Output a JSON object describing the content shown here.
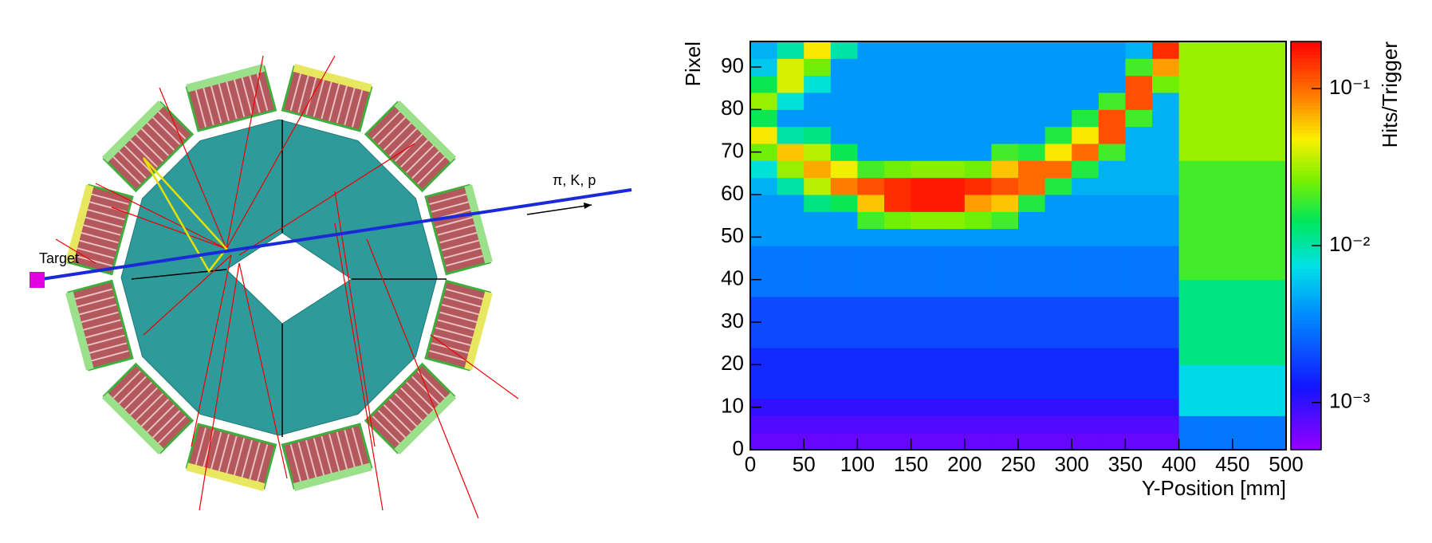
{
  "detector_view": {
    "target_label": "Target",
    "beam_label": "π, K, p"
  },
  "chart_data": {
    "type": "heatmap",
    "xlabel": "Y-Position [mm]",
    "ylabel": "Pixel",
    "zlabel": "Hits/Trigger",
    "xlim": [
      0,
      500
    ],
    "ylim": [
      0,
      96
    ],
    "zlim": [
      0.0005,
      0.2
    ],
    "zscale": "log",
    "xticks": [
      0,
      50,
      100,
      150,
      200,
      250,
      300,
      350,
      400,
      450,
      500
    ],
    "yticks": [
      0,
      10,
      20,
      30,
      40,
      50,
      60,
      70,
      80,
      90
    ],
    "zticks": [
      {
        "value": 0.001,
        "label": "10⁻³"
      },
      {
        "value": 0.01,
        "label": "10⁻²"
      },
      {
        "value": 0.1,
        "label": "10⁻¹"
      }
    ],
    "xbins": [
      0,
      25,
      50,
      75,
      100,
      125,
      150,
      175,
      200,
      225,
      250,
      275,
      300,
      325,
      350,
      375,
      400,
      425,
      450,
      475,
      500
    ],
    "ybins": [
      0,
      4,
      8,
      12,
      16,
      20,
      24,
      28,
      32,
      36,
      40,
      44,
      48,
      52,
      56,
      60,
      64,
      68,
      72,
      76,
      80,
      84,
      88,
      92,
      96
    ],
    "z": [
      [
        0.0007,
        0.0007,
        0.0007,
        0.0007,
        0.0007,
        0.0007,
        0.0007,
        0.0007,
        0.0007,
        0.0007,
        0.0007,
        0.0007,
        0.0007,
        0.0007,
        0.0007,
        0.0007,
        0.003,
        0.003,
        0.003,
        0.003
      ],
      [
        0.0008,
        0.0008,
        0.0008,
        0.0008,
        0.0008,
        0.0008,
        0.0008,
        0.0008,
        0.0008,
        0.0008,
        0.0008,
        0.0008,
        0.0008,
        0.0008,
        0.0008,
        0.0008,
        0.003,
        0.003,
        0.003,
        0.003
      ],
      [
        0.001,
        0.001,
        0.001,
        0.001,
        0.001,
        0.001,
        0.001,
        0.001,
        0.001,
        0.001,
        0.001,
        0.001,
        0.001,
        0.001,
        0.001,
        0.001,
        0.007,
        0.007,
        0.007,
        0.007
      ],
      [
        0.0015,
        0.0015,
        0.0015,
        0.0015,
        0.0015,
        0.0015,
        0.0015,
        0.0015,
        0.0015,
        0.0015,
        0.0015,
        0.0015,
        0.0015,
        0.0015,
        0.0015,
        0.0015,
        0.007,
        0.007,
        0.007,
        0.007
      ],
      [
        0.0015,
        0.0015,
        0.0015,
        0.0015,
        0.0015,
        0.0015,
        0.0015,
        0.0015,
        0.0015,
        0.0015,
        0.0015,
        0.0015,
        0.0015,
        0.0015,
        0.0015,
        0.0015,
        0.007,
        0.007,
        0.007,
        0.007
      ],
      [
        0.0015,
        0.0015,
        0.0015,
        0.0015,
        0.0015,
        0.0015,
        0.0015,
        0.0015,
        0.0015,
        0.0015,
        0.0015,
        0.0015,
        0.0015,
        0.0015,
        0.0015,
        0.0015,
        0.012,
        0.012,
        0.012,
        0.012
      ],
      [
        0.002,
        0.002,
        0.002,
        0.002,
        0.002,
        0.002,
        0.002,
        0.002,
        0.002,
        0.002,
        0.002,
        0.002,
        0.002,
        0.002,
        0.002,
        0.002,
        0.012,
        0.012,
        0.012,
        0.012
      ],
      [
        0.002,
        0.002,
        0.002,
        0.002,
        0.002,
        0.002,
        0.002,
        0.002,
        0.002,
        0.002,
        0.002,
        0.002,
        0.002,
        0.002,
        0.002,
        0.002,
        0.012,
        0.012,
        0.012,
        0.012
      ],
      [
        0.002,
        0.002,
        0.002,
        0.002,
        0.002,
        0.002,
        0.002,
        0.002,
        0.002,
        0.002,
        0.002,
        0.002,
        0.002,
        0.002,
        0.002,
        0.002,
        0.012,
        0.012,
        0.012,
        0.012
      ],
      [
        0.003,
        0.003,
        0.003,
        0.003,
        0.003,
        0.003,
        0.003,
        0.003,
        0.003,
        0.003,
        0.003,
        0.003,
        0.003,
        0.003,
        0.003,
        0.003,
        0.012,
        0.012,
        0.012,
        0.012
      ],
      [
        0.003,
        0.003,
        0.003,
        0.003,
        0.003,
        0.003,
        0.003,
        0.003,
        0.003,
        0.003,
        0.003,
        0.003,
        0.003,
        0.003,
        0.003,
        0.003,
        0.02,
        0.02,
        0.02,
        0.02
      ],
      [
        0.003,
        0.003,
        0.003,
        0.003,
        0.003,
        0.003,
        0.003,
        0.003,
        0.003,
        0.003,
        0.003,
        0.003,
        0.003,
        0.003,
        0.003,
        0.003,
        0.02,
        0.02,
        0.02,
        0.02
      ],
      [
        0.004,
        0.004,
        0.004,
        0.004,
        0.004,
        0.004,
        0.004,
        0.004,
        0.004,
        0.004,
        0.004,
        0.004,
        0.004,
        0.004,
        0.004,
        0.004,
        0.02,
        0.02,
        0.02,
        0.02
      ],
      [
        0.004,
        0.004,
        0.004,
        0.004,
        0.02,
        0.025,
        0.028,
        0.028,
        0.025,
        0.02,
        0.004,
        0.004,
        0.004,
        0.004,
        0.004,
        0.004,
        0.02,
        0.02,
        0.02,
        0.02
      ],
      [
        0.004,
        0.004,
        0.012,
        0.015,
        0.06,
        0.15,
        0.17,
        0.17,
        0.075,
        0.06,
        0.017,
        0.004,
        0.004,
        0.004,
        0.004,
        0.004,
        0.02,
        0.02,
        0.02,
        0.02
      ],
      [
        0.005,
        0.01,
        0.035,
        0.09,
        0.12,
        0.15,
        0.17,
        0.17,
        0.15,
        0.12,
        0.1,
        0.017,
        0.005,
        0.005,
        0.005,
        0.005,
        0.02,
        0.02,
        0.02,
        0.02
      ],
      [
        0.008,
        0.03,
        0.07,
        0.045,
        0.02,
        0.025,
        0.028,
        0.028,
        0.025,
        0.06,
        0.1,
        0.1,
        0.017,
        0.005,
        0.005,
        0.005,
        0.02,
        0.02,
        0.02,
        0.02
      ],
      [
        0.025,
        0.06,
        0.035,
        0.015,
        0.004,
        0.004,
        0.004,
        0.004,
        0.004,
        0.02,
        0.017,
        0.05,
        0.1,
        0.02,
        0.005,
        0.005,
        0.03,
        0.03,
        0.03,
        0.03
      ],
      [
        0.05,
        0.01,
        0.012,
        0.004,
        0.004,
        0.004,
        0.004,
        0.004,
        0.004,
        0.004,
        0.004,
        0.017,
        0.05,
        0.12,
        0.005,
        0.005,
        0.03,
        0.03,
        0.03,
        0.03
      ],
      [
        0.015,
        0.004,
        0.004,
        0.004,
        0.004,
        0.004,
        0.004,
        0.004,
        0.004,
        0.004,
        0.004,
        0.004,
        0.017,
        0.12,
        0.02,
        0.005,
        0.03,
        0.03,
        0.03,
        0.03
      ],
      [
        0.03,
        0.008,
        0.004,
        0.004,
        0.004,
        0.004,
        0.004,
        0.004,
        0.004,
        0.004,
        0.004,
        0.004,
        0.004,
        0.02,
        0.12,
        0.005,
        0.03,
        0.03,
        0.03,
        0.03
      ],
      [
        0.015,
        0.04,
        0.008,
        0.004,
        0.004,
        0.004,
        0.004,
        0.004,
        0.004,
        0.004,
        0.004,
        0.004,
        0.004,
        0.004,
        0.12,
        0.025,
        0.03,
        0.03,
        0.03,
        0.03
      ],
      [
        0.006,
        0.04,
        0.025,
        0.004,
        0.004,
        0.004,
        0.004,
        0.004,
        0.004,
        0.004,
        0.004,
        0.004,
        0.004,
        0.004,
        0.02,
        0.075,
        0.03,
        0.03,
        0.03,
        0.03
      ],
      [
        0.005,
        0.01,
        0.05,
        0.01,
        0.004,
        0.004,
        0.004,
        0.004,
        0.004,
        0.004,
        0.004,
        0.004,
        0.004,
        0.004,
        0.005,
        0.15,
        0.03,
        0.03,
        0.03,
        0.03
      ]
    ]
  }
}
